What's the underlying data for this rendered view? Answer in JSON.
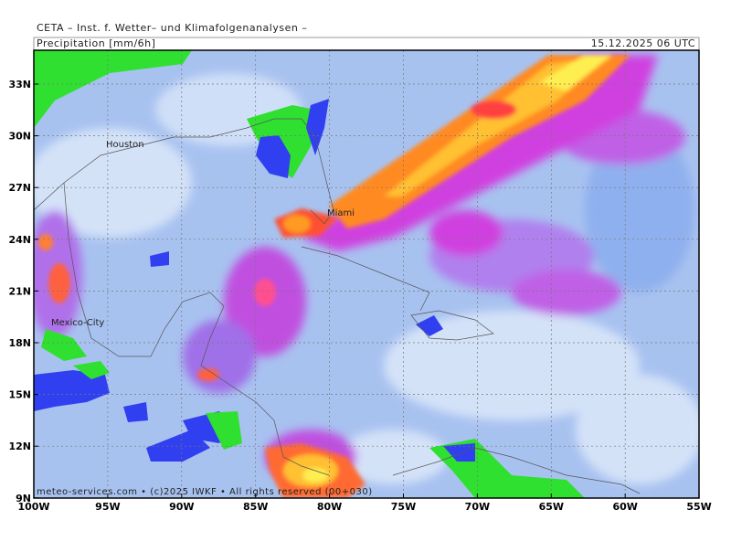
{
  "header": {
    "title": "CETA – Inst. f. Wetter– und Klimafolgenanalysen –",
    "field": "Precipitation [mm/6h]",
    "valid_time": "15.12.2025 06 UTC"
  },
  "map": {
    "lat_labels": [
      "33N",
      "30N",
      "27N",
      "24N",
      "21N",
      "18N",
      "15N",
      "12N",
      "9N"
    ],
    "lon_labels": [
      "100W",
      "95W",
      "90W",
      "85W",
      "80W",
      "75W",
      "70W",
      "65W",
      "60W",
      "55W"
    ],
    "cities": [
      "Houston",
      "Miami",
      "Mexico-City"
    ],
    "footer": "meteo-services.com • (c)2025 IWKF • All rights reserved (00+030)"
  }
}
